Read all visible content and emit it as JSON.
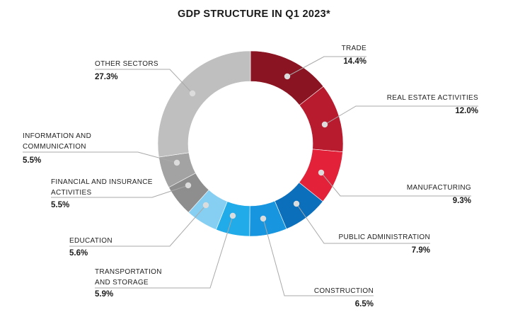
{
  "chart_data": {
    "type": "pie",
    "variant": "donut",
    "title": "GDP STRUCTURE IN Q1 2023*",
    "unit": "%",
    "slices": [
      {
        "label": [
          "TRADE"
        ],
        "value": 14.4,
        "display": "14.4%",
        "color": "#8a1422"
      },
      {
        "label": [
          "REAL ESTATE ACTIVITIES"
        ],
        "value": 12.0,
        "display": "12.0%",
        "color": "#b81a2e"
      },
      {
        "label": [
          "MANUFACTURING"
        ],
        "value": 9.3,
        "display": "9.3%",
        "color": "#e3223a"
      },
      {
        "label": [
          "PUBLIC ADMINISTRATION"
        ],
        "value": 7.9,
        "display": "7.9%",
        "color": "#0b6fbb"
      },
      {
        "label": [
          "CONSTRUCTION"
        ],
        "value": 6.5,
        "display": "6.5%",
        "color": "#1796df"
      },
      {
        "label": [
          "TRANSPORTATION",
          "AND STORAGE"
        ],
        "value": 5.9,
        "display": "5.9%",
        "color": "#21abe9"
      },
      {
        "label": [
          "EDUCATION"
        ],
        "value": 5.6,
        "display": "5.6%",
        "color": "#86cff2"
      },
      {
        "label": [
          "FINANCIAL AND INSURANCE",
          "ACTIVITIES"
        ],
        "value": 5.5,
        "display": "5.5%",
        "color": "#8e8e8e"
      },
      {
        "label": [
          "INFORMATION AND",
          "COMMUNICATION"
        ],
        "value": 5.5,
        "display": "5.5%",
        "color": "#a3a3a3"
      },
      {
        "label": [
          "OTHER SECTORS"
        ],
        "value": 27.3,
        "display": "27.3%",
        "color": "#bfbfbf"
      }
    ],
    "start": "12 o'clock",
    "direction": "clockwise",
    "legend": "none"
  }
}
